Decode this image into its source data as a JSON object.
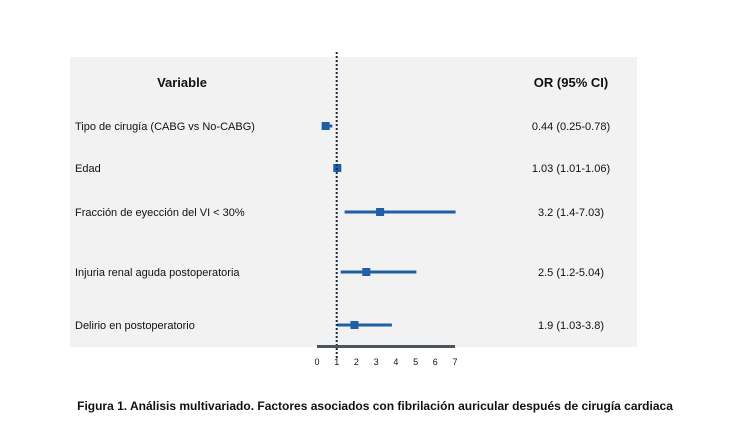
{
  "chart_data": {
    "type": "forest",
    "headers": {
      "variable": "Variable",
      "or": "OR (95% CI)"
    },
    "rows": [
      {
        "label": "Tipo de cirugía (CABG vs No-CABG)",
        "or": 0.44,
        "low": 0.25,
        "high": 0.78,
        "text": "0.44 (0.25-0.78)"
      },
      {
        "label": "Edad",
        "or": 1.03,
        "low": 1.01,
        "high": 1.06,
        "text": "1.03 (1.01-1.06)"
      },
      {
        "label": "Fracción de eyección del VI  < 30%",
        "or": 3.2,
        "low": 1.4,
        "high": 7.03,
        "text": "3.2 (1.4-7.03)"
      },
      {
        "label": "Injuria renal aguda postoperatoria",
        "or": 2.5,
        "low": 1.2,
        "high": 5.04,
        "text": "2.5 (1.2-5.04)"
      },
      {
        "label": "Delirio en postoperatorio",
        "or": 1.9,
        "low": 1.03,
        "high": 3.8,
        "text": "1.9 (1.03-3.8)"
      }
    ],
    "xlim": [
      0,
      7
    ],
    "ticks": [
      "0",
      "1",
      "2",
      "3",
      "4",
      "5",
      "6",
      "7"
    ],
    "reference_line": 1,
    "colors": {
      "marker": "#1f5fa6",
      "axis": "#4a5560",
      "reference": "#1a2a40"
    }
  },
  "caption": "Figura 1. Análisis multivariado. Factores asociados con fibrilación auricular después de cirugía cardiaca"
}
